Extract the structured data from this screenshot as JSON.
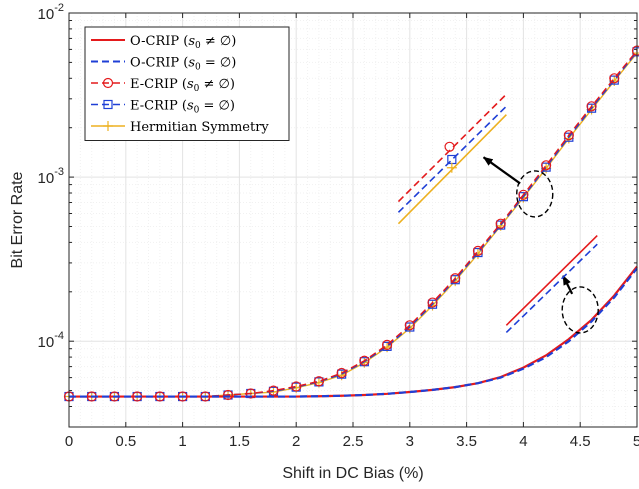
{
  "chart_data": {
    "type": "line",
    "xlabel": "Shift in DC Bias (%)",
    "ylabel": "Bit Error Rate",
    "xlim": [
      0,
      5
    ],
    "ylim": [
      3e-05,
      0.01
    ],
    "yscale": "log",
    "grid": true,
    "legend_position": "top-left",
    "x_ticks": [
      "0",
      "0.5",
      "1",
      "1.5",
      "2",
      "2.5",
      "3",
      "3.5",
      "4",
      "4.5",
      "5"
    ],
    "y_ticks": [
      {
        "value": 0.0001,
        "base": "10",
        "exp": "-4"
      },
      {
        "value": 0.001,
        "base": "10",
        "exp": "-3"
      },
      {
        "value": 0.01,
        "base": "10",
        "exp": "-2"
      }
    ],
    "series": [
      {
        "name": "O-CRIP (s0 ≠ ∅)",
        "legend": {
          "main": "O-CRIP (",
          "italic": "s",
          "sub": "0",
          "rest": " ≠ ∅)"
        },
        "color": "#e41a1c",
        "dash": "solid",
        "marker": "none",
        "x": [
          0,
          0.2,
          0.4,
          0.6,
          0.8,
          1.0,
          1.2,
          1.4,
          1.6,
          1.8,
          2.0,
          2.2,
          2.4,
          2.6,
          2.8,
          3.0,
          3.2,
          3.4,
          3.6,
          3.8,
          4.0,
          4.2,
          4.4,
          4.6,
          4.8,
          5.0
        ],
        "values": [
          4.6e-05,
          4.6e-05,
          4.6e-05,
          4.6e-05,
          4.6e-05,
          4.6e-05,
          4.6e-05,
          4.6e-05,
          4.6e-05,
          4.6e-05,
          4.6e-05,
          4.62e-05,
          4.65e-05,
          4.7e-05,
          4.78e-05,
          4.9e-05,
          5.05e-05,
          5.25e-05,
          5.55e-05,
          6.05e-05,
          6.9e-05,
          8.2e-05,
          0.000103,
          0.000135,
          0.00019,
          0.000285
        ]
      },
      {
        "name": "O-CRIP (s0 = ∅)",
        "legend": {
          "main": "O-CRIP (",
          "italic": "s",
          "sub": "0",
          "rest": " = ∅)"
        },
        "color": "#1f3fd6",
        "dash": "dashed",
        "marker": "none",
        "x": [
          0,
          0.2,
          0.4,
          0.6,
          0.8,
          1.0,
          1.2,
          1.4,
          1.6,
          1.8,
          2.0,
          2.2,
          2.4,
          2.6,
          2.8,
          3.0,
          3.2,
          3.4,
          3.6,
          3.8,
          4.0,
          4.2,
          4.4,
          4.6,
          4.8,
          5.0
        ],
        "values": [
          4.6e-05,
          4.6e-05,
          4.6e-05,
          4.6e-05,
          4.6e-05,
          4.6e-05,
          4.6e-05,
          4.6e-05,
          4.6e-05,
          4.6e-05,
          4.6e-05,
          4.62e-05,
          4.65e-05,
          4.7e-05,
          4.78e-05,
          4.9e-05,
          5.05e-05,
          5.25e-05,
          5.55e-05,
          6e-05,
          6.8e-05,
          8e-05,
          0.0001,
          0.000132,
          0.000185,
          0.000278
        ]
      },
      {
        "name": "E-CRIP (s0 ≠ ∅)",
        "legend": {
          "main": "E-CRIP (",
          "italic": "s",
          "sub": "0",
          "rest": " ≠ ∅)"
        },
        "color": "#e41a1c",
        "dash": "dashed",
        "marker": "circle",
        "x": [
          0,
          0.2,
          0.4,
          0.6,
          0.8,
          1.0,
          1.2,
          1.4,
          1.6,
          1.8,
          2.0,
          2.2,
          2.4,
          2.6,
          2.8,
          3.0,
          3.2,
          3.4,
          3.6,
          3.8,
          4.0,
          4.2,
          4.4,
          4.6,
          4.8,
          5.0
        ],
        "values": [
          4.6e-05,
          4.6e-05,
          4.6e-05,
          4.6e-05,
          4.6e-05,
          4.6e-05,
          4.6e-05,
          4.7e-05,
          4.8e-05,
          5e-05,
          5.3e-05,
          5.7e-05,
          6.4e-05,
          7.6e-05,
          9.5e-05,
          0.000125,
          0.000172,
          0.000242,
          0.000355,
          0.00052,
          0.00078,
          0.00118,
          0.0018,
          0.0027,
          0.004,
          0.0059
        ]
      },
      {
        "name": "E-CRIP (s0 = ∅)",
        "legend": {
          "main": "E-CRIP (",
          "italic": "s",
          "sub": "0",
          "rest": " = ∅)"
        },
        "color": "#1f3fd6",
        "dash": "dashed",
        "marker": "square",
        "x": [
          0,
          0.2,
          0.4,
          0.6,
          0.8,
          1.0,
          1.2,
          1.4,
          1.6,
          1.8,
          2.0,
          2.2,
          2.4,
          2.6,
          2.8,
          3.0,
          3.2,
          3.4,
          3.6,
          3.8,
          4.0,
          4.2,
          4.4,
          4.6,
          4.8,
          5.0
        ],
        "values": [
          4.6e-05,
          4.6e-05,
          4.6e-05,
          4.6e-05,
          4.6e-05,
          4.6e-05,
          4.6e-05,
          4.7e-05,
          4.8e-05,
          4.95e-05,
          5.25e-05,
          5.65e-05,
          6.3e-05,
          7.5e-05,
          9.3e-05,
          0.000122,
          0.000168,
          0.000237,
          0.000347,
          0.00051,
          0.00076,
          0.00115,
          0.00175,
          0.00263,
          0.0039,
          0.0058
        ]
      },
      {
        "name": "Hermitian Symmetry",
        "legend": {
          "main": "Hermitian Symmetry",
          "italic": "",
          "sub": "",
          "rest": ""
        },
        "color": "#edb120",
        "dash": "solid",
        "marker": "plus",
        "x": [
          0,
          0.2,
          0.4,
          0.6,
          0.8,
          1.0,
          1.2,
          1.4,
          1.6,
          1.8,
          2.0,
          2.2,
          2.4,
          2.6,
          2.8,
          3.0,
          3.2,
          3.4,
          3.6,
          3.8,
          4.0,
          4.2,
          4.4,
          4.6,
          4.8,
          5.0
        ],
        "values": [
          4.6e-05,
          4.6e-05,
          4.6e-05,
          4.6e-05,
          4.6e-05,
          4.6e-05,
          4.6e-05,
          4.7e-05,
          4.8e-05,
          4.9e-05,
          5.2e-05,
          5.6e-05,
          6.2e-05,
          7.4e-05,
          9.2e-05,
          0.00012,
          0.000165,
          0.000233,
          0.00034,
          0.000505,
          0.00075,
          0.00113,
          0.00172,
          0.00258,
          0.00385,
          0.0057
        ]
      }
    ],
    "annotations": [
      {
        "type": "zoom-inset",
        "ellipse_center": [
          4.1,
          0.00079
        ],
        "arrow_to": [
          3.65,
          0.00132
        ],
        "inset_lines": [
          {
            "color": "#e41a1c",
            "dash": "dashed",
            "x": [
              2.9,
              3.85
            ],
            "values": [
              0.00071,
              0.0032
            ]
          },
          {
            "color": "#1f3fd6",
            "dash": "dashed",
            "x": [
              2.9,
              3.85
            ],
            "values": [
              0.00061,
              0.0027
            ]
          },
          {
            "color": "#edb120",
            "dash": "solid",
            "x": [
              2.9,
              3.85
            ],
            "values": [
              0.00052,
              0.0024
            ]
          }
        ],
        "inset_markers": [
          {
            "marker": "circle",
            "color": "#e41a1c",
            "x": 3.35,
            "value": 0.00153
          },
          {
            "marker": "square",
            "color": "#1f3fd6",
            "x": 3.37,
            "value": 0.00128
          },
          {
            "marker": "plus",
            "color": "#edb120",
            "x": 3.37,
            "value": 0.00114
          }
        ]
      },
      {
        "type": "zoom-inset",
        "ellipse_center": [
          4.5,
          0.000155
        ],
        "arrow_to": [
          4.35,
          0.00025
        ],
        "inset_lines": [
          {
            "color": "#e41a1c",
            "dash": "solid",
            "x": [
              3.85,
              4.65
            ],
            "values": [
              0.000125,
              0.00044
            ]
          },
          {
            "color": "#1f3fd6",
            "dash": "dashed",
            "x": [
              3.85,
              4.65
            ],
            "values": [
              0.000113,
              0.00039
            ]
          }
        ],
        "inset_markers": []
      }
    ]
  }
}
